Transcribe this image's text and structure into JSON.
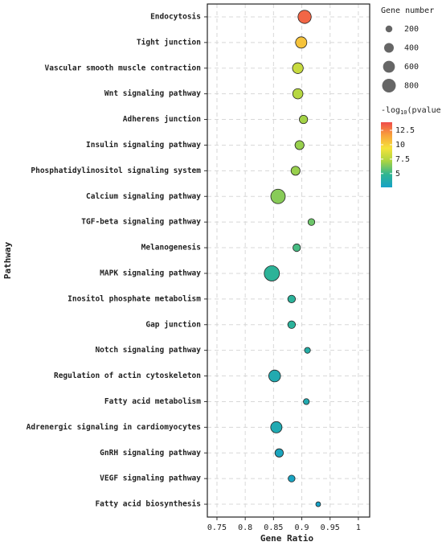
{
  "chart_data": {
    "type": "scatter",
    "xlabel": "Gene Ratio",
    "ylabel": "Pathway",
    "categories": [
      "Endocytosis",
      "Tight junction",
      "Vascular smooth muscle contraction",
      "Wnt signaling pathway",
      "Adherens junction",
      "Insulin signaling pathway",
      "Phosphatidylinositol signaling system",
      "Calcium signaling pathway",
      "TGF-beta signaling pathway",
      "Melanogenesis",
      "MAPK signaling pathway",
      "Inositol phosphate metabolism",
      "Gap junction",
      "Notch signaling pathway",
      "Regulation of actin cytoskeleton",
      "Fatty acid metabolism",
      "Adrenergic signaling in cardiomyocytes",
      "GnRH signaling pathway",
      "VEGF signaling pathway",
      "Fatty acid biosynthesis"
    ],
    "values": [
      0.905,
      0.899,
      0.893,
      0.893,
      0.903,
      0.896,
      0.889,
      0.858,
      0.917,
      0.891,
      0.847,
      0.882,
      0.882,
      0.91,
      0.852,
      0.908,
      0.855,
      0.86,
      0.882,
      0.929
    ],
    "sizes": [
      750,
      550,
      500,
      450,
      300,
      350,
      350,
      900,
      200,
      250,
      1000,
      250,
      250,
      150,
      600,
      150,
      550,
      300,
      200,
      100
    ],
    "pvalues": [
      13.2,
      10.5,
      8,
      7.5,
      7,
      6.8,
      6.8,
      6.5,
      6,
      5.3,
      4.6,
      4.5,
      4.5,
      4,
      3.6,
      3.6,
      3.5,
      3,
      2.8,
      2.6
    ],
    "xlim": [
      0.733,
      1.02
    ],
    "xticks": [
      0.75,
      0.8,
      0.85,
      0.9,
      0.95,
      1
    ],
    "grid": true,
    "size_legend_title": "Gene number",
    "size_legend": [
      200,
      400,
      600,
      800
    ],
    "colorbar_title": {
      "prefix": "-log",
      "sub": "10",
      "suffix": "(pvalue)"
    },
    "clim": [
      2.6,
      13.9
    ],
    "colorbar_ticks": [
      5,
      7.5,
      10,
      12.5
    ],
    "colormap": [
      "#17a2c7",
      "#2fb592",
      "#a9d442",
      "#f5e33b",
      "#f8a23b",
      "#ef4b4b"
    ]
  }
}
